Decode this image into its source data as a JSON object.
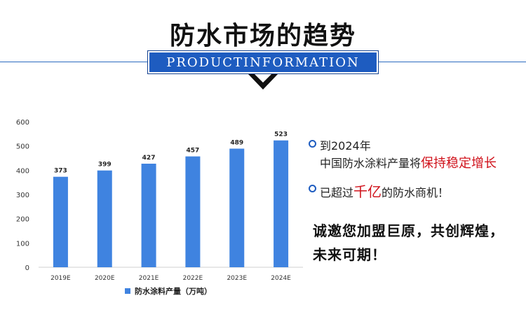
{
  "header": {
    "title": "防水市场的趋势",
    "banner": "PRODUCTINFORMATION"
  },
  "chart_data": {
    "type": "bar",
    "categories": [
      "2019E",
      "2020E",
      "2021E",
      "2022E",
      "2023E",
      "2024E"
    ],
    "series": [
      {
        "name": "防水涂料产量（万吨）",
        "values": [
          373,
          399,
          427,
          457,
          489,
          523
        ]
      }
    ],
    "title": "",
    "xlabel": "",
    "ylabel": "",
    "ylim": [
      0,
      600
    ],
    "yticks": [
      0,
      100,
      200,
      300,
      400,
      500,
      600
    ],
    "grid": false,
    "legend": "bottom",
    "color": "#3f83e0"
  },
  "bullets": [
    {
      "line1": "到2024年",
      "line2_plain": "中国防水涂料产量将",
      "line2_highlight": "保持稳定增长"
    },
    {
      "pre": "已超过",
      "highlight": "千亿",
      "post": "的防水商机！"
    }
  ],
  "cta": {
    "line1": "诚邀您加盟巨原，共创辉煌，",
    "line2": "未来可期！"
  },
  "colors": {
    "accent": "#1e5cc0",
    "highlight": "#d0121b",
    "bar": "#3f83e0"
  }
}
